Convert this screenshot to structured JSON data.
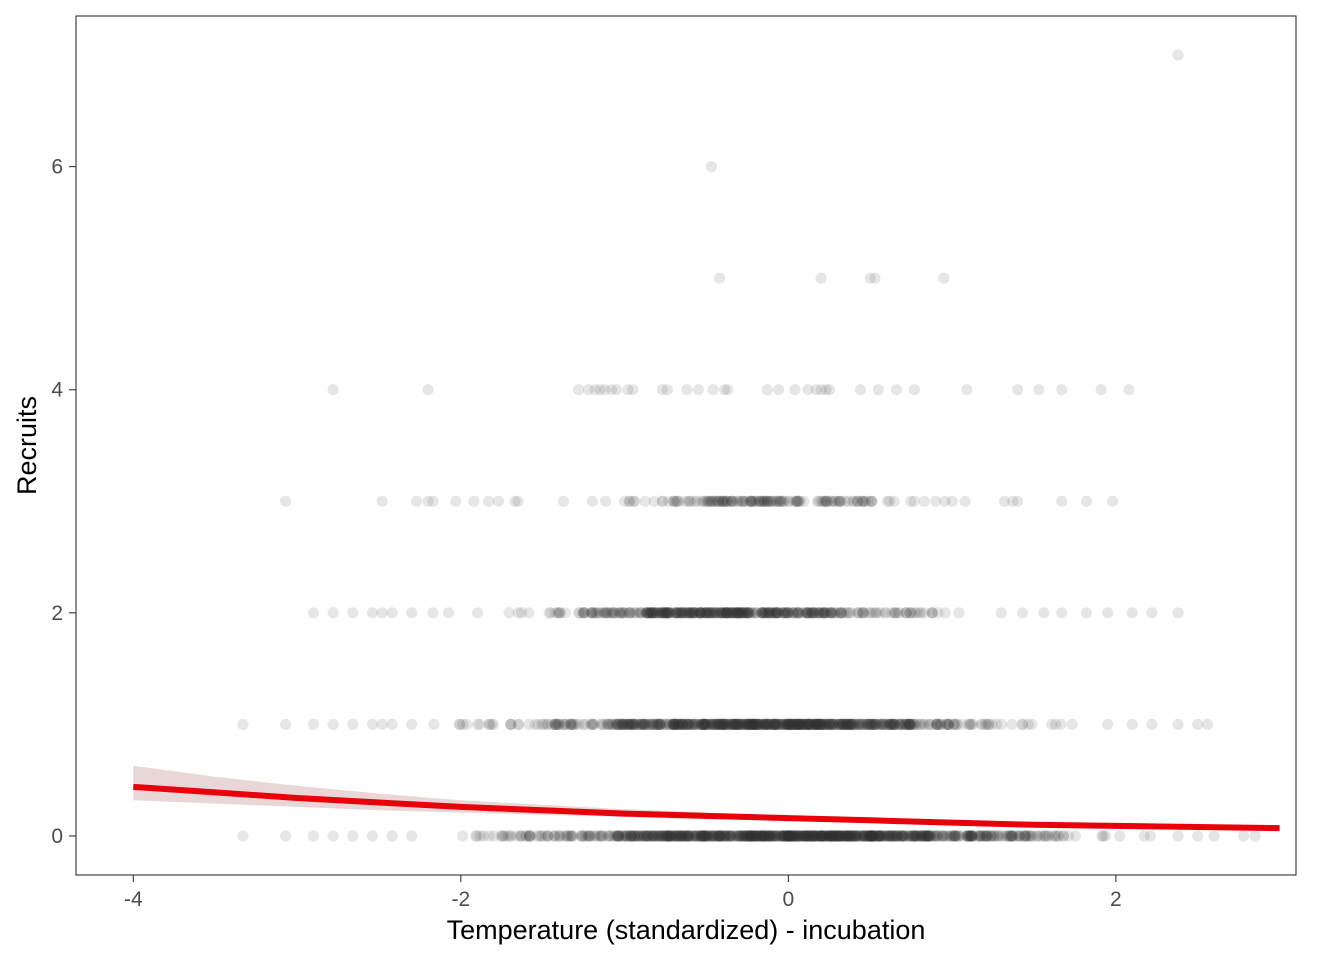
{
  "chart_data": {
    "type": "scatter",
    "title": "",
    "xlabel": "Temperature (standardized) - incubation",
    "ylabel": "Recruits",
    "xlim": [
      -4.35,
      3.1
    ],
    "ylim": [
      -0.35,
      7.35
    ],
    "x_ticks": [
      -4,
      -2,
      0,
      2
    ],
    "x_tick_labels": [
      "-4",
      "-2",
      "0",
      "2"
    ],
    "y_ticks": [
      0,
      2,
      4,
      6
    ],
    "y_tick_labels": [
      "0",
      "2",
      "4",
      "6"
    ],
    "grid": false,
    "legend": "none",
    "point_color": "#333333",
    "point_opacity": 0.12,
    "series": [
      {
        "type": "scatter",
        "points": [
          {
            "x": 2.38,
            "y": 7
          },
          {
            "x": -0.47,
            "y": 6
          },
          {
            "x": -0.42,
            "y": 5
          },
          {
            "x": 0.2,
            "y": 5
          },
          {
            "x": 0.5,
            "y": 5
          },
          {
            "x": 0.53,
            "y": 5
          },
          {
            "x": 0.95,
            "y": 5
          },
          {
            "x": -2.78,
            "y": 4
          },
          {
            "x": -2.2,
            "y": 4
          },
          {
            "x": -1.28,
            "y": 4
          },
          {
            "x": -1.22,
            "y": 4
          },
          {
            "x": -1.18,
            "y": 4
          },
          {
            "x": -1.15,
            "y": 4
          },
          {
            "x": -1.12,
            "y": 4
          },
          {
            "x": -1.08,
            "y": 4
          },
          {
            "x": -1.05,
            "y": 4
          },
          {
            "x": -0.98,
            "y": 4
          },
          {
            "x": -0.95,
            "y": 4
          },
          {
            "x": -0.77,
            "y": 4
          },
          {
            "x": -0.74,
            "y": 4
          },
          {
            "x": -0.62,
            "y": 4
          },
          {
            "x": -0.55,
            "y": 4
          },
          {
            "x": -0.46,
            "y": 4
          },
          {
            "x": -0.39,
            "y": 4
          },
          {
            "x": -0.37,
            "y": 4
          },
          {
            "x": -0.13,
            "y": 4
          },
          {
            "x": -0.06,
            "y": 4
          },
          {
            "x": 0.04,
            "y": 4
          },
          {
            "x": 0.12,
            "y": 4
          },
          {
            "x": 0.17,
            "y": 4
          },
          {
            "x": 0.2,
            "y": 4
          },
          {
            "x": 0.23,
            "y": 4
          },
          {
            "x": 0.25,
            "y": 4
          },
          {
            "x": 0.44,
            "y": 4
          },
          {
            "x": 0.55,
            "y": 4
          },
          {
            "x": 0.66,
            "y": 4
          },
          {
            "x": 0.77,
            "y": 4
          },
          {
            "x": 1.09,
            "y": 4
          },
          {
            "x": 1.4,
            "y": 4
          },
          {
            "x": 1.53,
            "y": 4
          },
          {
            "x": 1.67,
            "y": 4
          },
          {
            "x": 1.91,
            "y": 4
          },
          {
            "x": 2.08,
            "y": 4
          },
          {
            "x": -3.07,
            "y": 3
          },
          {
            "x": -2.48,
            "y": 3
          },
          {
            "x": -2.27,
            "y": 3
          },
          {
            "x": -2.2,
            "y": 3
          },
          {
            "x": -2.17,
            "y": 3
          },
          {
            "x": -2.03,
            "y": 3
          },
          {
            "x": -1.92,
            "y": 3
          },
          {
            "x": -1.83,
            "y": 3
          },
          {
            "x": -1.77,
            "y": 3
          },
          {
            "x": -1.67,
            "y": 3
          },
          {
            "x": -1.65,
            "y": 3
          },
          {
            "x": -1.0,
            "y": 3
          },
          {
            "x": -0.7,
            "y": 3
          },
          {
            "x": -0.16,
            "y": 3
          },
          {
            "x": 0.23,
            "y": 3
          },
          {
            "x": 0.45,
            "y": 3
          },
          {
            "x": 0.9,
            "y": 3
          },
          {
            "x": 1.0,
            "y": 3
          },
          {
            "x": 1.08,
            "y": 3
          },
          {
            "x": 1.32,
            "y": 3
          },
          {
            "x": 1.37,
            "y": 3
          },
          {
            "x": 1.4,
            "y": 3
          },
          {
            "x": 1.67,
            "y": 3
          },
          {
            "x": 1.82,
            "y": 3
          },
          {
            "x": 1.98,
            "y": 3
          },
          {
            "x": -2.9,
            "y": 2
          },
          {
            "x": -2.78,
            "y": 2
          },
          {
            "x": -2.66,
            "y": 2
          },
          {
            "x": -2.54,
            "y": 2
          },
          {
            "x": -2.48,
            "y": 2
          },
          {
            "x": -2.42,
            "y": 2
          },
          {
            "x": -2.3,
            "y": 2
          },
          {
            "x": -2.17,
            "y": 2
          },
          {
            "x": 1.3,
            "y": 2
          },
          {
            "x": 1.43,
            "y": 2
          },
          {
            "x": 1.56,
            "y": 2
          },
          {
            "x": 1.67,
            "y": 2
          },
          {
            "x": 1.82,
            "y": 2
          },
          {
            "x": 1.95,
            "y": 2
          },
          {
            "x": 2.1,
            "y": 2
          },
          {
            "x": 2.22,
            "y": 2
          },
          {
            "x": 2.38,
            "y": 2
          },
          {
            "x": -3.33,
            "y": 1
          },
          {
            "x": -3.07,
            "y": 1
          },
          {
            "x": -2.9,
            "y": 1
          },
          {
            "x": -2.78,
            "y": 1
          },
          {
            "x": -2.66,
            "y": 1
          },
          {
            "x": -2.54,
            "y": 1
          },
          {
            "x": -2.48,
            "y": 1
          },
          {
            "x": -2.42,
            "y": 1
          },
          {
            "x": -2.3,
            "y": 1
          },
          {
            "x": 1.95,
            "y": 1
          },
          {
            "x": 2.1,
            "y": 1
          },
          {
            "x": 2.22,
            "y": 1
          },
          {
            "x": 2.38,
            "y": 1
          },
          {
            "x": 2.5,
            "y": 1
          },
          {
            "x": 2.56,
            "y": 1
          },
          {
            "x": -3.33,
            "y": 0
          },
          {
            "x": -3.07,
            "y": 0
          },
          {
            "x": -2.9,
            "y": 0
          },
          {
            "x": -2.78,
            "y": 0
          },
          {
            "x": -2.66,
            "y": 0
          },
          {
            "x": -2.54,
            "y": 0
          },
          {
            "x": -2.42,
            "y": 0
          },
          {
            "x": -2.3,
            "y": 0
          },
          {
            "x": 2.38,
            "y": 0
          },
          {
            "x": 2.5,
            "y": 0
          },
          {
            "x": 2.6,
            "y": 0
          },
          {
            "x": 2.78,
            "y": 0
          },
          {
            "x": 2.85,
            "y": 0
          }
        ],
        "dense_bands": [
          {
            "y": 3,
            "x_range": [
              -1.5,
              1.25
            ]
          },
          {
            "y": 2,
            "x_range": [
              -2.1,
              1.3
            ]
          },
          {
            "y": 1,
            "x_range": [
              -2.25,
              1.95
            ]
          },
          {
            "y": 0,
            "x_range": [
              -2.3,
              2.35
            ]
          }
        ]
      },
      {
        "type": "line",
        "color": "#e8000b",
        "ribbon_color": "#e2c9c9",
        "x": [
          -4.0,
          -3.5,
          -3.0,
          -2.5,
          -2.0,
          -1.5,
          -1.0,
          -0.5,
          0.0,
          0.5,
          1.0,
          1.5,
          2.0,
          2.5,
          3.0
        ],
        "y": [
          0.44,
          0.39,
          0.34,
          0.3,
          0.26,
          0.23,
          0.2,
          0.18,
          0.16,
          0.14,
          0.12,
          0.1,
          0.09,
          0.08,
          0.07
        ],
        "lower": [
          0.32,
          0.29,
          0.26,
          0.23,
          0.21,
          0.19,
          0.17,
          0.15,
          0.14,
          0.12,
          0.1,
          0.09,
          0.07,
          0.06,
          0.05
        ],
        "upper": [
          0.63,
          0.53,
          0.45,
          0.38,
          0.32,
          0.28,
          0.24,
          0.21,
          0.18,
          0.16,
          0.14,
          0.12,
          0.11,
          0.1,
          0.09
        ]
      }
    ]
  }
}
